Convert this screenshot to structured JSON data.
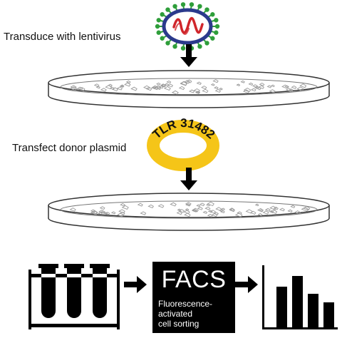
{
  "steps": {
    "transduce_label": "Transduce with lentivirus",
    "transfect_label": "Transfect donor plasmid"
  },
  "plasmid": {
    "label": "TLR 31482",
    "color": "#F5C518"
  },
  "facs": {
    "title": "FACS",
    "description_lines": [
      "Fluorescence-",
      "activated",
      "cell sorting"
    ]
  },
  "colors": {
    "virus_envelope": "#2B3A8C",
    "virus_spikes": "#2E9E3A",
    "virus_rna": "#D0262B",
    "arrow": "#000000",
    "dish_outline": "#333333",
    "cells": "#9A9A9A"
  },
  "icons": {
    "virus": "lentivirus-icon",
    "dish": "petri-dish-icon",
    "plasmid": "plasmid-ring-icon",
    "tubes": "test-tube-rack-icon",
    "histogram": "bar-chart-icon"
  }
}
